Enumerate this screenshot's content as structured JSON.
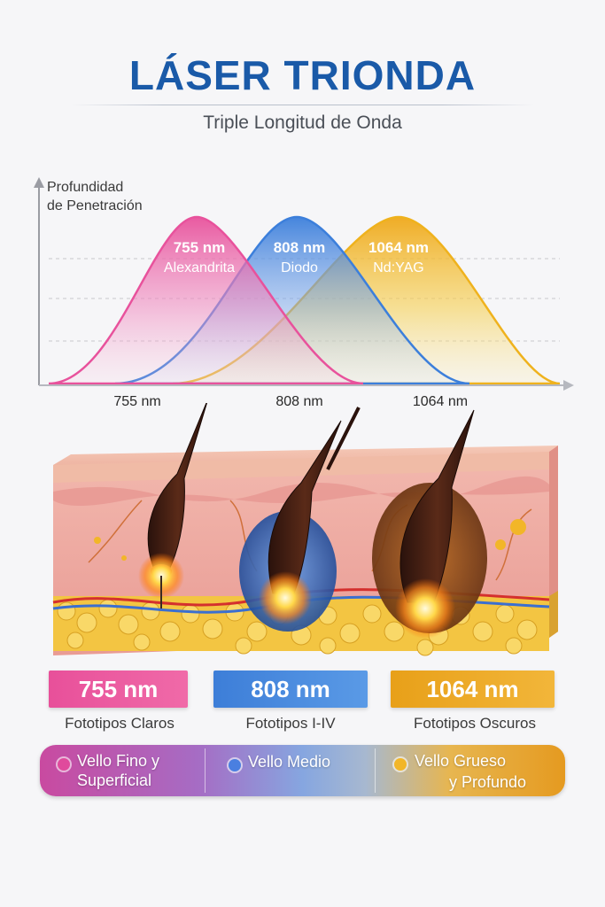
{
  "header": {
    "title": "LÁSER TRIONDA",
    "subtitle": "Triple Longitud de Onda"
  },
  "chart": {
    "y_axis_label_line1": "Profundidad",
    "y_axis_label_line2": "de Penetración",
    "curves": [
      {
        "wavelength": "755 nm",
        "name": "Alexandrita",
        "color": "#e8529c"
      },
      {
        "wavelength": "808 nm",
        "name": "Diodo",
        "color": "#3c7fdb"
      },
      {
        "wavelength": "1064 nm",
        "name": "Nd:YAG",
        "color": "#efb21d"
      }
    ],
    "x_ticks": [
      "755 nm",
      "808 nm",
      "1064 nm"
    ]
  },
  "wavelength_boxes": [
    {
      "label": "755 nm",
      "caption": "Fototipos Claros"
    },
    {
      "label": "808 nm",
      "caption": "Fototipos I-IV"
    },
    {
      "label": "1064 nm",
      "caption": "Fototipos Oscuros"
    }
  ],
  "hair_bar": {
    "item1_line1": "Vello Fino y",
    "item1_line2": "Superficial",
    "item2": "Vello Medio",
    "item3_line1": "Vello Grueso",
    "item3_line2": "y Profundo",
    "dot_colors": [
      "#e04a9c",
      "#4a7fe0",
      "#f2b628"
    ]
  }
}
